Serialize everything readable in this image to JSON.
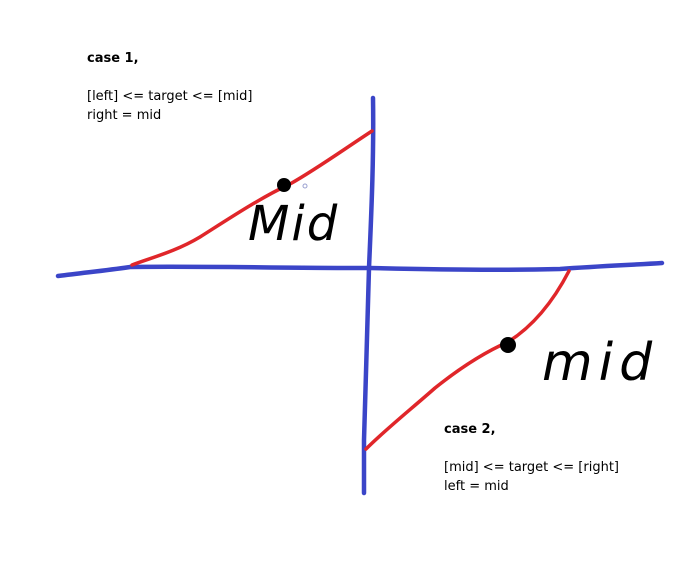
{
  "colors": {
    "axis": "#3b45c8",
    "curve": "#e0262a",
    "point": "#000000",
    "background": "#ffffff"
  },
  "case1": {
    "title": "case 1,",
    "line1": "[left] <= target <= [mid]",
    "line2": "right = mid",
    "mid_label": "Mid"
  },
  "case2": {
    "title": "case 2,",
    "line1": "[mid] <= target <= [right]",
    "line2": "left = mid",
    "mid_label": "mid"
  }
}
